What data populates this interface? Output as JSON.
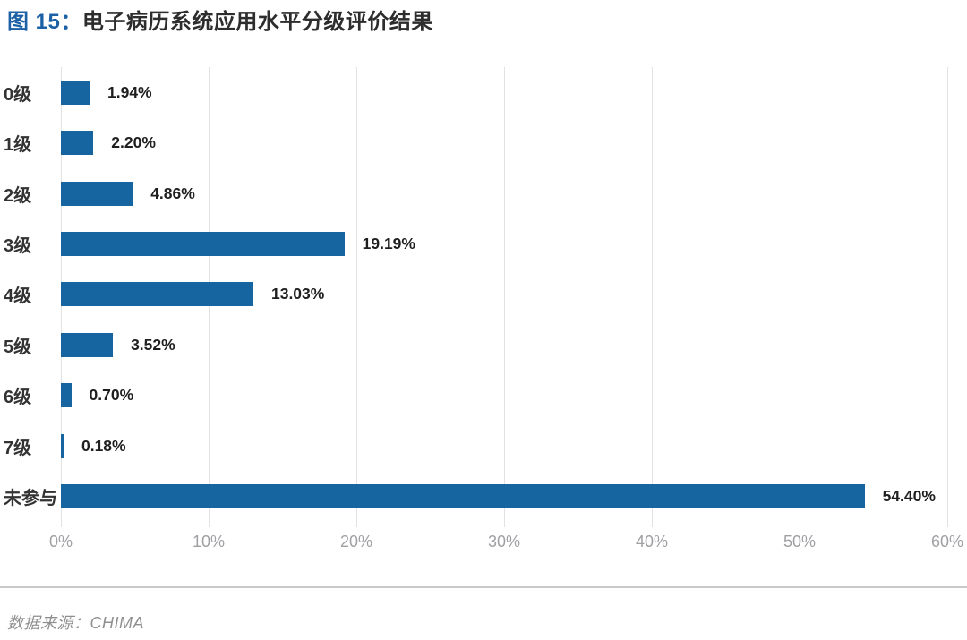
{
  "header": {
    "figure_label": "图 15：",
    "title": "电子病历系统应用水平分级评价结果"
  },
  "chart_data": {
    "type": "bar",
    "orientation": "horizontal",
    "title": "电子病历系统应用水平分级评价结果",
    "categories": [
      "0级",
      "1级",
      "2级",
      "3级",
      "4级",
      "5级",
      "6级",
      "7级",
      "未参与"
    ],
    "values": [
      1.94,
      2.2,
      4.86,
      19.19,
      13.03,
      3.52,
      0.7,
      0.18,
      54.4
    ],
    "value_labels": [
      "1.94%",
      "2.20%",
      "4.86%",
      "19.19%",
      "13.03%",
      "3.52%",
      "0.70%",
      "0.18%",
      "54.40%"
    ],
    "x_ticks": [
      "0%",
      "10%",
      "20%",
      "30%",
      "40%",
      "50%",
      "60%"
    ],
    "xlim": [
      0,
      60
    ],
    "grid": "vertical",
    "bar_color": "#1665a0",
    "legend": "none"
  },
  "footer": {
    "source": "数据来源：CHIMA"
  }
}
